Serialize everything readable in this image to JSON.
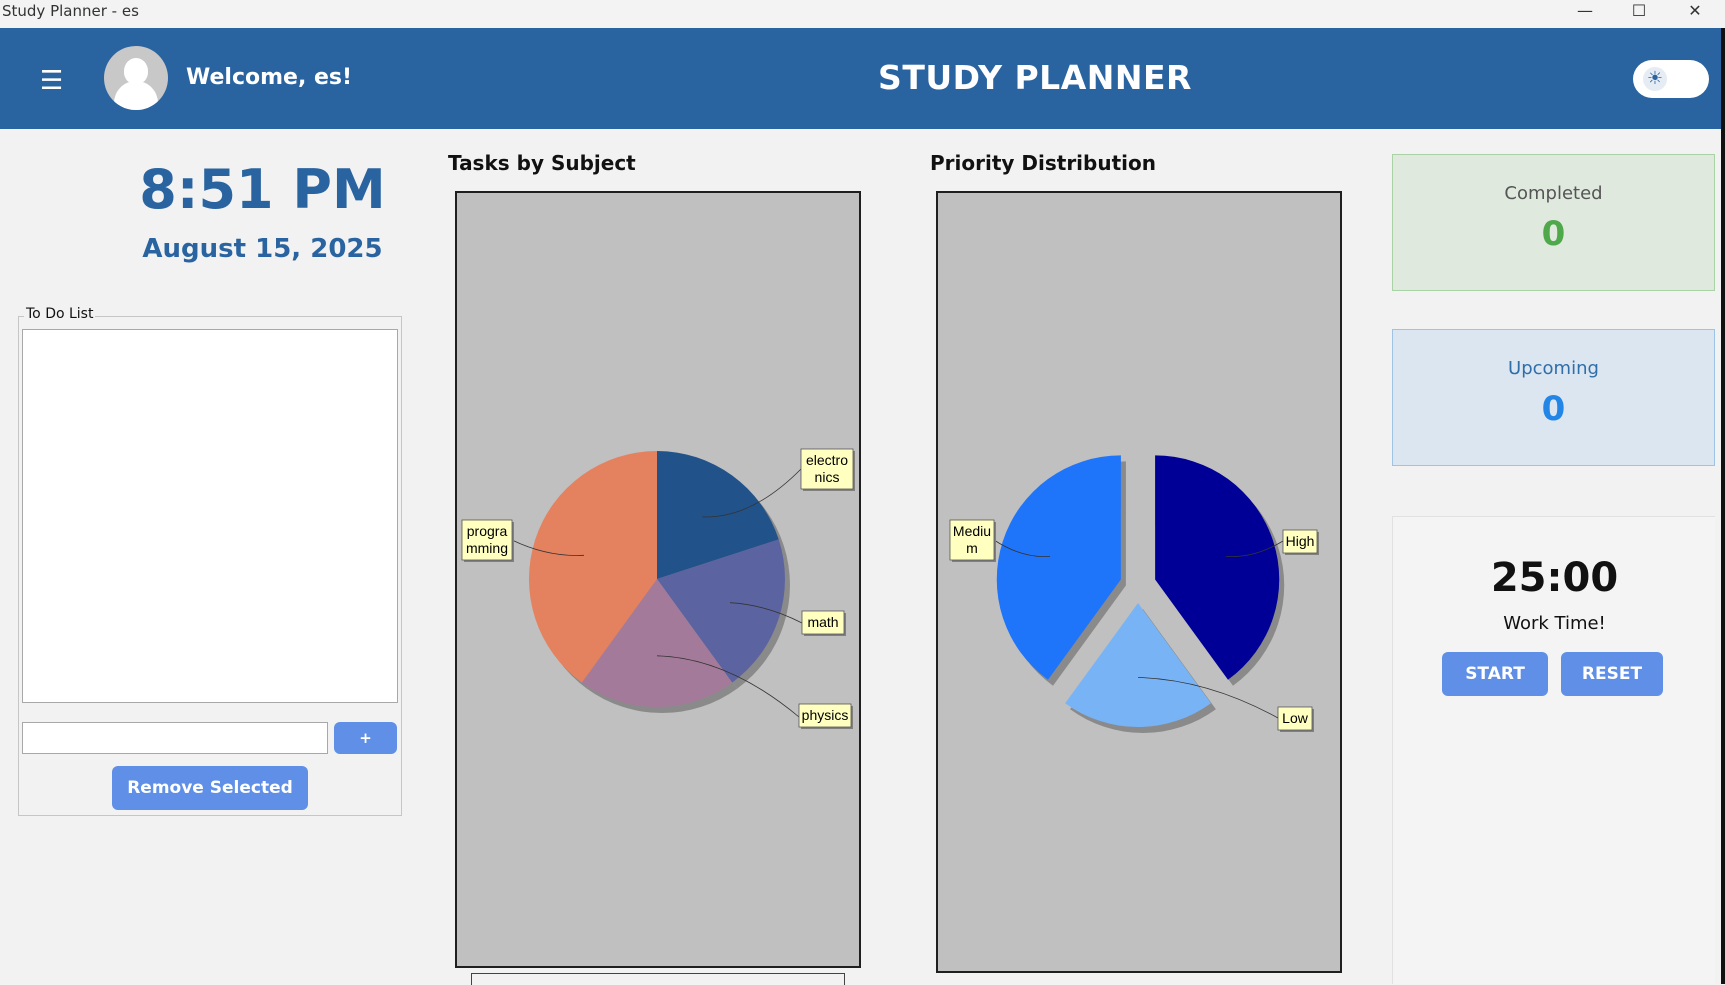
{
  "window": {
    "title": "Study Planner - es",
    "min_icon": "minimize-icon",
    "max_icon": "maximize-icon",
    "close_icon": "close-icon"
  },
  "header": {
    "welcome": "Welcome, es!",
    "app_title": "STUDY PLANNER",
    "background": "#2a64a0",
    "menu_icon": "hamburger-icon",
    "theme_toggle_icon": "sun-icon"
  },
  "clock": {
    "time": "8:51 PM",
    "date": "August 15, 2025"
  },
  "todo": {
    "legend": "To Do List",
    "items": [],
    "input_value": "",
    "add_label": "+",
    "remove_label": "Remove Selected"
  },
  "chart_data": [
    {
      "type": "pie",
      "title": "Tasks by Subject",
      "categories": [
        "electronics",
        "math",
        "physics",
        "programming"
      ],
      "values": [
        1,
        1,
        1,
        2
      ],
      "colors": [
        "#22528a",
        "#5b64a0",
        "#a47a9a",
        "#e4825f"
      ],
      "labels_display": [
        "electro\nnics",
        "math",
        "physics",
        "progra\nmming"
      ]
    },
    {
      "type": "pie",
      "title": "Priority Distribution",
      "categories": [
        "High",
        "Low",
        "Medium"
      ],
      "values": [
        2,
        1,
        2
      ],
      "colors": [
        "#000096",
        "#78b4f5",
        "#1f75fa"
      ],
      "exploded": true,
      "labels_display": [
        "High",
        "Low",
        "Mediu\nm"
      ]
    }
  ],
  "stats": {
    "completed_label": "Completed",
    "completed_value": "0",
    "upcoming_label": "Upcoming",
    "upcoming_value": "0"
  },
  "timer": {
    "time": "25:00",
    "label": "Work Time!",
    "start_label": "START",
    "reset_label": "RESET"
  }
}
